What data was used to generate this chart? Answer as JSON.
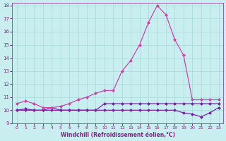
{
  "x": [
    0,
    1,
    2,
    3,
    4,
    5,
    6,
    7,
    8,
    9,
    10,
    11,
    12,
    13,
    14,
    15,
    16,
    17,
    18,
    19,
    20,
    21,
    22,
    23
  ],
  "line1": [
    10.5,
    10.7,
    10.5,
    10.2,
    10.2,
    10.3,
    10.5,
    10.8,
    11.0,
    11.3,
    11.5,
    11.5,
    13.0,
    13.8,
    15.0,
    16.7,
    18.0,
    17.3,
    15.4,
    14.2,
    10.8,
    10.8,
    10.8,
    10.8
  ],
  "line2": [
    10.0,
    10.1,
    10.0,
    10.0,
    10.2,
    10.0,
    10.0,
    10.0,
    10.0,
    10.0,
    10.5,
    10.5,
    10.5,
    10.5,
    10.5,
    10.5,
    10.5,
    10.5,
    10.5,
    10.5,
    10.5,
    10.5,
    10.5,
    10.5
  ],
  "line3": [
    10.0,
    10.0,
    10.0,
    10.0,
    10.0,
    10.0,
    10.0,
    10.0,
    10.0,
    10.0,
    10.0,
    10.0,
    10.0,
    10.0,
    10.0,
    10.0,
    10.0,
    10.0,
    10.0,
    9.8,
    9.7,
    9.5,
    9.8,
    10.2
  ],
  "line_color1": "#cc44aa",
  "line_color2": "#7722aa",
  "line_color3": "#7722aa",
  "bg_color": "#c8eef0",
  "grid_color": "#a8d8d8",
  "text_color": "#882288",
  "xlabel": "Windchill (Refroidissement éolien,°C)",
  "xlim": [
    -0.5,
    23.5
  ],
  "ylim": [
    9,
    18.2
  ],
  "yticks": [
    9,
    10,
    11,
    12,
    13,
    14,
    15,
    16,
    17,
    18
  ],
  "xticks": [
    0,
    1,
    2,
    3,
    4,
    5,
    6,
    7,
    8,
    9,
    10,
    11,
    12,
    13,
    14,
    15,
    16,
    17,
    18,
    19,
    20,
    21,
    22,
    23
  ],
  "marker": "D",
  "markersize": 2.0,
  "linewidth": 0.9
}
